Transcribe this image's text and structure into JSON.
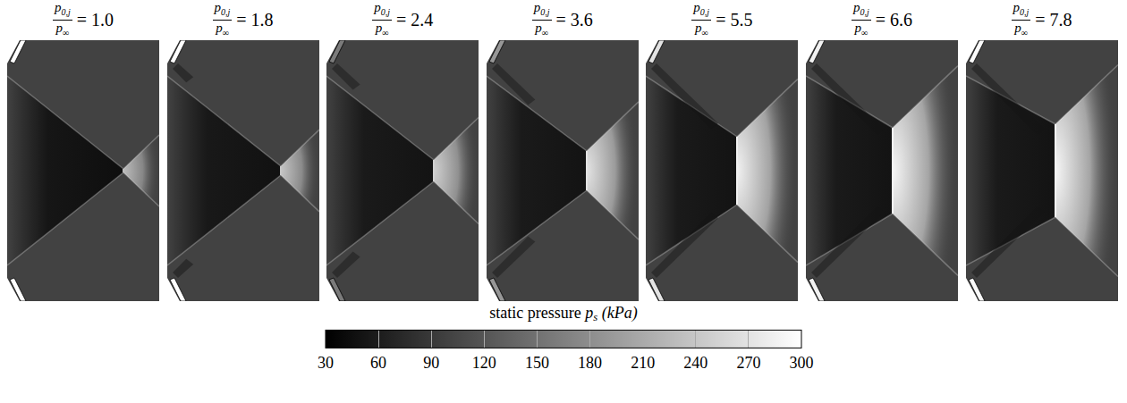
{
  "chart_data": {
    "type": "heatmap_panels",
    "panel_label": {
      "numerator": "p",
      "numerator_sub": "0,j",
      "denominator": "p",
      "denominator_sub": "∞"
    },
    "panels": [
      {
        "ratio": 1.0,
        "ratio_label": "1.0",
        "pressure": {
          "ambient": 100,
          "core": 45,
          "mach_disk": 230,
          "injector": 300
        }
      },
      {
        "ratio": 1.8,
        "ratio_label": "1.8",
        "pressure": {
          "ambient": 100,
          "core": 48,
          "mach_disk": 240,
          "injector": 300
        }
      },
      {
        "ratio": 2.4,
        "ratio_label": "2.4",
        "pressure": {
          "ambient": 100,
          "core": 50,
          "mach_disk": 250,
          "injector": 160
        }
      },
      {
        "ratio": 3.6,
        "ratio_label": "3.6",
        "pressure": {
          "ambient": 100,
          "core": 50,
          "mach_disk": 270,
          "injector": 190
        }
      },
      {
        "ratio": 5.5,
        "ratio_label": "5.5",
        "pressure": {
          "ambient": 100,
          "core": 50,
          "mach_disk": 285,
          "injector": 270
        }
      },
      {
        "ratio": 6.6,
        "ratio_label": "6.6",
        "pressure": {
          "ambient": 100,
          "core": 50,
          "mach_disk": 290,
          "injector": 285
        }
      },
      {
        "ratio": 7.8,
        "ratio_label": "7.8",
        "pressure": {
          "ambient": 100,
          "core": 50,
          "mach_disk": 290,
          "injector": 295
        }
      }
    ],
    "colorbar": {
      "title": "static pressure",
      "symbol": "p",
      "symbol_sub": "s",
      "unit": "(kPa)",
      "range": [
        30,
        300
      ],
      "ticks": [
        30,
        60,
        90,
        120,
        150,
        180,
        210,
        240,
        270,
        300
      ]
    }
  }
}
